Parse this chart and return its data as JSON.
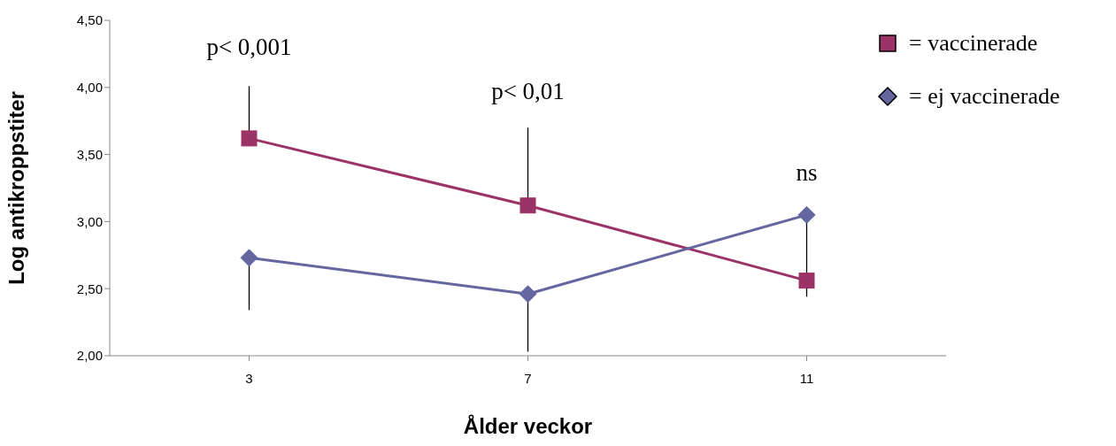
{
  "chart_data": {
    "type": "line",
    "xlabel": "Ålder veckor",
    "ylabel": "Log antikroppstiter",
    "categories": [
      "3",
      "7",
      "11"
    ],
    "series": [
      {
        "name": "= vaccinerade",
        "color": "#9b3366",
        "marker": "square",
        "values": [
          3.62,
          3.12,
          2.56
        ],
        "errors": [
          [
            3.62,
            4.01
          ],
          [
            3.12,
            3.7
          ],
          null
        ]
      },
      {
        "name": "= ej vaccinerade",
        "color": "#6466a0",
        "marker": "diamond",
        "values": [
          2.73,
          2.46,
          3.05
        ],
        "errors": [
          [
            2.34,
            2.73
          ],
          [
            2.03,
            2.46
          ],
          [
            2.44,
            3.05
          ]
        ]
      }
    ],
    "ylim": [
      2,
      4.5
    ],
    "yticks": [
      {
        "value": 2,
        "label": "2,00"
      },
      {
        "value": 2.5,
        "label": "2,50"
      },
      {
        "value": 3,
        "label": "3,00"
      },
      {
        "value": 3.5,
        "label": "3,50"
      },
      {
        "value": 4,
        "label": "4,00"
      },
      {
        "value": 4.5,
        "label": "4,50"
      }
    ],
    "grid": false,
    "legend": "top right",
    "annotations": [
      "p< 0,001",
      "p< 0,01",
      "ns"
    ]
  }
}
